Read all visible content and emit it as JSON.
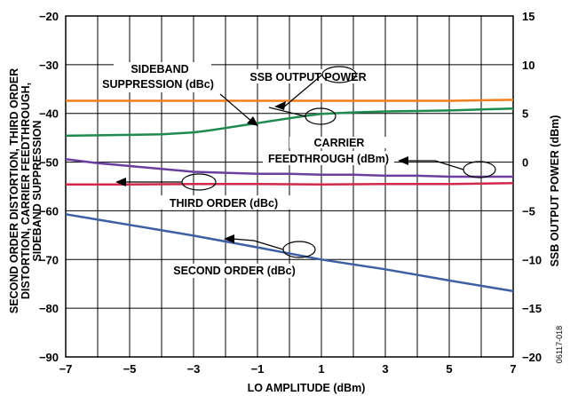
{
  "chart_data": {
    "type": "line",
    "xlabel": "LO AMPLITUDE (dBm)",
    "ylabel_left": "SECOND ORDER DISTORTION, THIRD ORDER DISTORTION, CARRIER FEEDTHROUGH, SIDEBAND SUPPRESSION",
    "ylabel_left_lines": [
      "SECOND ORDER DISTORTION, THIRD ORDER",
      "DISTORTION, CARRIER FEEDTHROUGH,",
      "SIDEBAND SUPPRESSION"
    ],
    "ylabel_right": "SSB OUTPUT POWER (dBm)",
    "xlim": [
      -7,
      7
    ],
    "ylim_left": [
      -90,
      -20
    ],
    "ylim_right": [
      -20,
      15
    ],
    "x_ticks": [
      "−7",
      "−5",
      "−3",
      "−1",
      "1",
      "3",
      "5",
      "7"
    ],
    "y_left_ticks": [
      "−20",
      "−30",
      "−40",
      "−50",
      "−60",
      "−70",
      "−80",
      "−90"
    ],
    "y_right_ticks": [
      "15",
      "10",
      "5",
      "0",
      "−5",
      "−10",
      "−15",
      "−20"
    ],
    "grid": true,
    "figure_id": "06117-018",
    "series": [
      {
        "name": "SSB OUTPUT POWER",
        "axis": "right",
        "color": "#f07f1e",
        "x": [
          -7,
          -5,
          -3,
          -1,
          1,
          3,
          5,
          7
        ],
        "y": [
          6.3,
          6.3,
          6.3,
          6.3,
          6.3,
          6.3,
          6.3,
          6.4
        ]
      },
      {
        "name": "SIDEBAND SUPPRESSION (dBc)",
        "axis": "left",
        "color": "#1e8a4e",
        "x": [
          -7,
          -6,
          -5,
          -4,
          -3,
          -2.5,
          -2,
          -1.5,
          -1,
          -0.5,
          0,
          0.5,
          1,
          2,
          3,
          4,
          5,
          6,
          7
        ],
        "y": [
          -44.6,
          -44.5,
          -44.4,
          -44.3,
          -43.9,
          -43.5,
          -43.0,
          -42.5,
          -42.0,
          -41.5,
          -41.0,
          -40.5,
          -40.1,
          -39.8,
          -39.6,
          -39.5,
          -39.4,
          -39.2,
          -39.0
        ]
      },
      {
        "name": "CARRIER FEEDTHROUGH (dBm)",
        "axis": "right",
        "color": "#6a3fa0",
        "x": [
          -7,
          -6,
          -5,
          -4,
          -3,
          -2,
          -1,
          0,
          1,
          2,
          3,
          4,
          5,
          6,
          7
        ],
        "y": [
          0.3,
          -0.1,
          -0.4,
          -0.7,
          -1.0,
          -1.1,
          -1.2,
          -1.2,
          -1.3,
          -1.3,
          -1.4,
          -1.4,
          -1.5,
          -1.5,
          -1.5
        ]
      },
      {
        "name": "THIRD ORDER (dBc)",
        "axis": "left",
        "color": "#d0294a",
        "x": [
          -7,
          -5,
          -3,
          -1,
          1,
          3,
          5,
          7
        ],
        "y": [
          -54.6,
          -54.6,
          -54.5,
          -54.5,
          -54.6,
          -54.5,
          -54.5,
          -54.3
        ]
      },
      {
        "name": "SECOND ORDER (dBc)",
        "axis": "left",
        "color": "#3d5fa3",
        "x": [
          -7,
          -5,
          -3,
          -1,
          1,
          3,
          5,
          7
        ],
        "y": [
          -60.7,
          -62.9,
          -65.1,
          -67.5,
          -70.0,
          -72.0,
          -74.3,
          -76.5
        ]
      }
    ],
    "annotations": [
      {
        "lines": [
          "SIDEBAND",
          "SUPPRESSION (dBc)"
        ]
      },
      {
        "lines": [
          "SSB OUTPUT POWER"
        ]
      },
      {
        "lines": [
          "CARRIER",
          "FEEDTHROUGH (dBm)"
        ]
      },
      {
        "lines": [
          "THIRD ORDER (dBc)"
        ]
      },
      {
        "lines": [
          "SECOND ORDER (dBc)"
        ]
      }
    ]
  }
}
